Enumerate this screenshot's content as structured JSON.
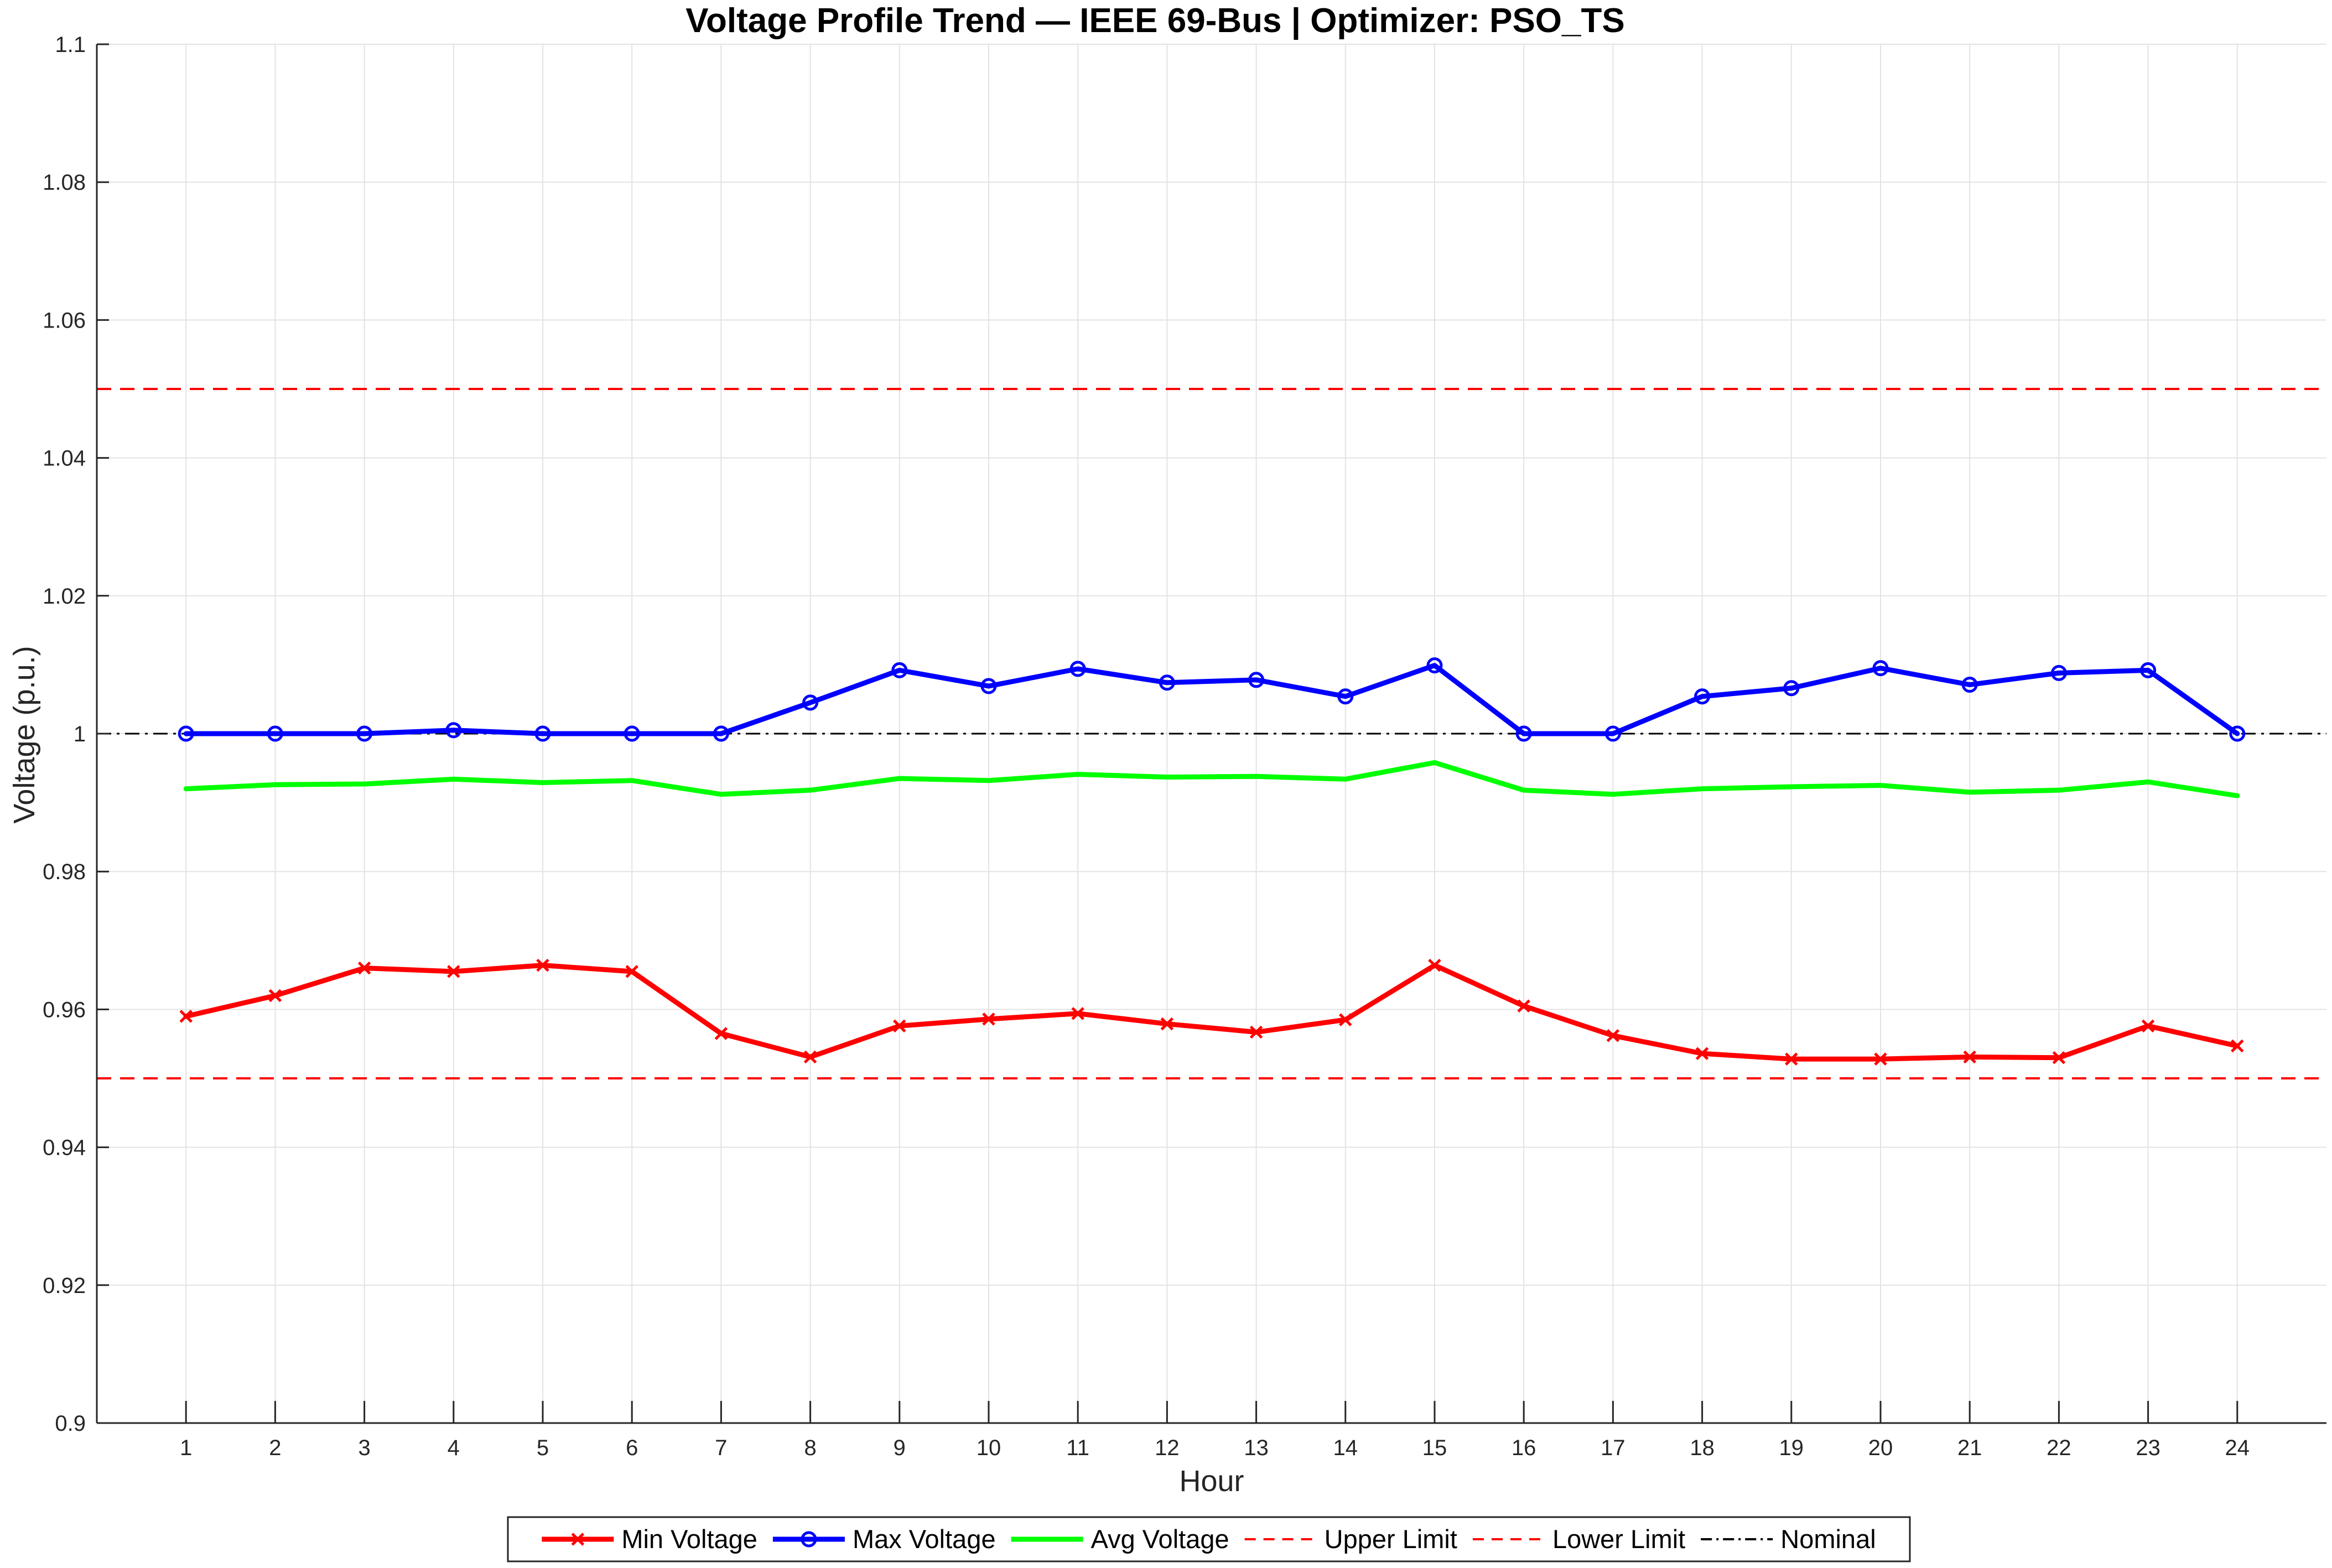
{
  "chart_data": {
    "type": "line",
    "title": "Voltage Profile Trend — IEEE 69-Bus | Optimizer: PSO_TS",
    "xlabel": "Hour",
    "ylabel": "Voltage (p.u.)",
    "xlim": [
      0,
      25
    ],
    "ylim": [
      0.9,
      1.1
    ],
    "grid": true,
    "legend_position": "bottom-center",
    "x": [
      1,
      2,
      3,
      4,
      5,
      6,
      7,
      8,
      9,
      10,
      11,
      12,
      13,
      14,
      15,
      16,
      17,
      18,
      19,
      20,
      21,
      22,
      23,
      24
    ],
    "x_tick_labels": [
      "1",
      "2",
      "3",
      "4",
      "5",
      "6",
      "7",
      "8",
      "9",
      "10",
      "11",
      "12",
      "13",
      "14",
      "15",
      "16",
      "17",
      "18",
      "19",
      "20",
      "21",
      "22",
      "23",
      "24"
    ],
    "y_ticks": [
      0.9,
      0.92,
      0.94,
      0.96,
      0.98,
      1,
      1.02,
      1.04,
      1.06,
      1.08,
      1.1
    ],
    "y_tick_labels": [
      "0.9",
      "0.92",
      "0.94",
      "0.96",
      "0.98",
      "1",
      "1.02",
      "1.04",
      "1.06",
      "1.08",
      "1.1"
    ],
    "series": [
      {
        "name": "Min Voltage",
        "color": "#ff0000",
        "marker": "x",
        "style": "solid",
        "values": [
          0.959,
          0.962,
          0.966,
          0.9655,
          0.9664,
          0.9655,
          0.9565,
          0.9531,
          0.9576,
          0.9586,
          0.9594,
          0.9579,
          0.9567,
          0.9585,
          0.9664,
          0.9605,
          0.9562,
          0.9536,
          0.9528,
          0.9528,
          0.9531,
          0.953,
          0.9576,
          0.9547
        ]
      },
      {
        "name": "Max Voltage",
        "color": "#0000ff",
        "marker": "o",
        "style": "solid",
        "values": [
          1.0,
          1.0,
          1.0,
          1.0005,
          1.0,
          1.0,
          1.0,
          1.0045,
          1.0092,
          1.0069,
          1.0094,
          1.0074,
          1.0078,
          1.0054,
          1.0099,
          1.0,
          1.0,
          1.0054,
          1.0066,
          1.0095,
          1.0071,
          1.0088,
          1.0092,
          1.0
        ]
      },
      {
        "name": "Avg Voltage",
        "color": "#00ff00",
        "marker": "none",
        "style": "solid",
        "values": [
          0.992,
          0.9926,
          0.9927,
          0.9934,
          0.9929,
          0.9932,
          0.9912,
          0.9918,
          0.9935,
          0.9932,
          0.9941,
          0.9937,
          0.9938,
          0.9934,
          0.9958,
          0.9918,
          0.9912,
          0.992,
          0.9923,
          0.9925,
          0.9915,
          0.9918,
          0.993,
          0.991
        ]
      }
    ],
    "reference_lines": [
      {
        "name": "Upper Limit",
        "value": 1.05,
        "color": "#ff0000",
        "style": "dashed"
      },
      {
        "name": "Lower Limit",
        "value": 0.95,
        "color": "#ff0000",
        "style": "dashed"
      },
      {
        "name": "Nominal",
        "value": 1.0,
        "color": "#000000",
        "style": "dashdot"
      }
    ]
  }
}
